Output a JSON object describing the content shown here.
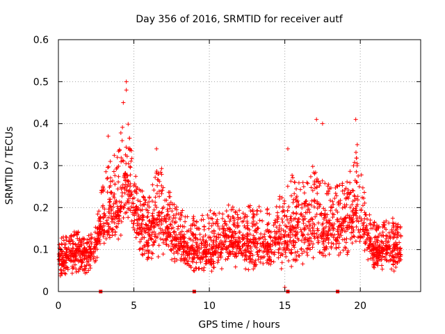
{
  "chart_data": {
    "type": "scatter",
    "title": "Day 356 of 2016, SRMTID for receiver autf",
    "xlabel": "GPS time / hours",
    "ylabel": "SRMTID / TECUs",
    "xlim": [
      0,
      24
    ],
    "ylim": [
      0,
      0.6
    ],
    "xticks": [
      0,
      5,
      10,
      15,
      20
    ],
    "yticks": [
      0,
      0.1,
      0.2,
      0.3,
      0.4,
      0.5,
      0.6
    ],
    "xtick_labels": [
      "0",
      "5",
      "10",
      "15",
      "20"
    ],
    "ytick_labels": [
      "0",
      "0.1",
      "0.2",
      "0.3",
      "0.4",
      "0.5",
      "0.6"
    ],
    "grid": true,
    "marker": "+",
    "color": "#ff0000",
    "zero_markers_x": [
      2.8,
      9.0,
      15.2,
      18.5
    ],
    "notable_points": [
      {
        "x": 4.5,
        "y": 0.5
      },
      {
        "x": 4.5,
        "y": 0.48
      },
      {
        "x": 4.3,
        "y": 0.45
      },
      {
        "x": 17.1,
        "y": 0.41
      },
      {
        "x": 19.7,
        "y": 0.41
      },
      {
        "x": 17.5,
        "y": 0.4
      },
      {
        "x": 3.3,
        "y": 0.37
      },
      {
        "x": 19.8,
        "y": 0.35
      },
      {
        "x": 6.5,
        "y": 0.34
      },
      {
        "x": 15.2,
        "y": 0.34
      },
      {
        "x": 15.0,
        "y": 0.01
      }
    ],
    "series": [
      {
        "name": "SRMTID",
        "envelope": [
          {
            "x": 0.0,
            "lo": 0.03,
            "mid": 0.08,
            "hi": 0.13
          },
          {
            "x": 1.0,
            "lo": 0.04,
            "mid": 0.09,
            "hi": 0.14
          },
          {
            "x": 2.0,
            "lo": 0.04,
            "mid": 0.09,
            "hi": 0.14
          },
          {
            "x": 2.5,
            "lo": 0.07,
            "mid": 0.11,
            "hi": 0.16
          },
          {
            "x": 3.0,
            "lo": 0.1,
            "mid": 0.18,
            "hi": 0.28
          },
          {
            "x": 3.5,
            "lo": 0.12,
            "mid": 0.18,
            "hi": 0.32
          },
          {
            "x": 4.0,
            "lo": 0.12,
            "mid": 0.2,
            "hi": 0.36
          },
          {
            "x": 4.5,
            "lo": 0.15,
            "mid": 0.28,
            "hi": 0.44
          },
          {
            "x": 5.0,
            "lo": 0.12,
            "mid": 0.2,
            "hi": 0.3
          },
          {
            "x": 5.5,
            "lo": 0.08,
            "mid": 0.16,
            "hi": 0.24
          },
          {
            "x": 6.0,
            "lo": 0.06,
            "mid": 0.15,
            "hi": 0.22
          },
          {
            "x": 6.5,
            "lo": 0.08,
            "mid": 0.18,
            "hi": 0.3
          },
          {
            "x": 7.0,
            "lo": 0.08,
            "mid": 0.17,
            "hi": 0.3
          },
          {
            "x": 7.5,
            "lo": 0.07,
            "mid": 0.14,
            "hi": 0.24
          },
          {
            "x": 8.0,
            "lo": 0.06,
            "mid": 0.12,
            "hi": 0.2
          },
          {
            "x": 9.0,
            "lo": 0.04,
            "mid": 0.1,
            "hi": 0.18
          },
          {
            "x": 10.0,
            "lo": 0.04,
            "mid": 0.1,
            "hi": 0.19
          },
          {
            "x": 11.0,
            "lo": 0.05,
            "mid": 0.12,
            "hi": 0.2
          },
          {
            "x": 12.0,
            "lo": 0.05,
            "mid": 0.12,
            "hi": 0.21
          },
          {
            "x": 13.0,
            "lo": 0.05,
            "mid": 0.12,
            "hi": 0.21
          },
          {
            "x": 14.0,
            "lo": 0.05,
            "mid": 0.11,
            "hi": 0.2
          },
          {
            "x": 15.0,
            "lo": 0.05,
            "mid": 0.13,
            "hi": 0.24
          },
          {
            "x": 15.5,
            "lo": 0.06,
            "mid": 0.15,
            "hi": 0.28
          },
          {
            "x": 16.0,
            "lo": 0.06,
            "mid": 0.14,
            "hi": 0.25
          },
          {
            "x": 17.0,
            "lo": 0.07,
            "mid": 0.15,
            "hi": 0.3
          },
          {
            "x": 18.0,
            "lo": 0.08,
            "mid": 0.15,
            "hi": 0.25
          },
          {
            "x": 19.0,
            "lo": 0.08,
            "mid": 0.15,
            "hi": 0.26
          },
          {
            "x": 19.8,
            "lo": 0.1,
            "mid": 0.2,
            "hi": 0.34
          },
          {
            "x": 20.5,
            "lo": 0.07,
            "mid": 0.13,
            "hi": 0.2
          },
          {
            "x": 21.0,
            "lo": 0.05,
            "mid": 0.1,
            "hi": 0.16
          },
          {
            "x": 22.0,
            "lo": 0.05,
            "mid": 0.11,
            "hi": 0.18
          },
          {
            "x": 22.7,
            "lo": 0.05,
            "mid": 0.1,
            "hi": 0.15
          }
        ],
        "n_points": 2600
      }
    ]
  }
}
